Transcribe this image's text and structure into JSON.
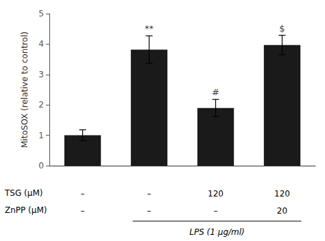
{
  "chart_data": {
    "type": "bar",
    "categories": [
      null,
      null,
      null,
      null
    ],
    "values": [
      1.0,
      3.82,
      1.9,
      3.97
    ],
    "errors": [
      0.18,
      0.45,
      0.28,
      0.32
    ],
    "color": "#1a1a1a",
    "ylabel": "MitoSOX (relative to control)",
    "ylim": [
      0,
      5
    ],
    "yticks": [
      0,
      1,
      2,
      3,
      4,
      5
    ],
    "grid": false,
    "tick_labels": "y",
    "annotations": [
      {
        "text": "**",
        "x": 2,
        "y": 4.35
      },
      {
        "text": "#",
        "x": 3,
        "y": 2.25
      },
      {
        "text": "$",
        "x": 4,
        "y": 4.35
      }
    ],
    "table": {
      "rows": [
        {
          "label": "TSG (μM)",
          "values": [
            "–",
            "–",
            "120",
            "120"
          ]
        },
        {
          "label": "ZnPP (μM)",
          "values": [
            "–",
            "–",
            "–",
            "20"
          ]
        }
      ],
      "bracket_label": "LPS (1 μg/ml)"
    }
  }
}
